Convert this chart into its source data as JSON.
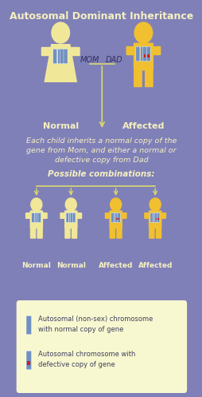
{
  "title": "Autosomal Dominant Inheritance",
  "bg_color": "#8080b8",
  "body_color_normal": "#f0e898",
  "body_color_affected": "#f0c030",
  "chrom_color": "#7090c0",
  "chrom_defect_color": "#cc2020",
  "legend_bg": "#f8f8d0",
  "arrow_color": "#d8d870",
  "text_white": "#f5f0c0",
  "text_dark": "#303060",
  "label_normal": "Normal",
  "label_affected": "Affected",
  "mom_label": "MOM",
  "dad_label": "DAD",
  "desc_line1": "Each child inherits a normal copy of the",
  "desc_line2": "gene from Mom, and either a normal or",
  "desc_line3": "defective copy from Dad",
  "combo_text": "Possible combinations:",
  "legend1": "Autosomal (non-sex) chromosome\nwith normal copy of gene",
  "legend2": "Autosomal chromosome with\ndefective copy of gene",
  "child_labels": [
    "Normal",
    "Normal",
    "Affected",
    "Affected"
  ],
  "child_affected": [
    false,
    false,
    true,
    true
  ]
}
